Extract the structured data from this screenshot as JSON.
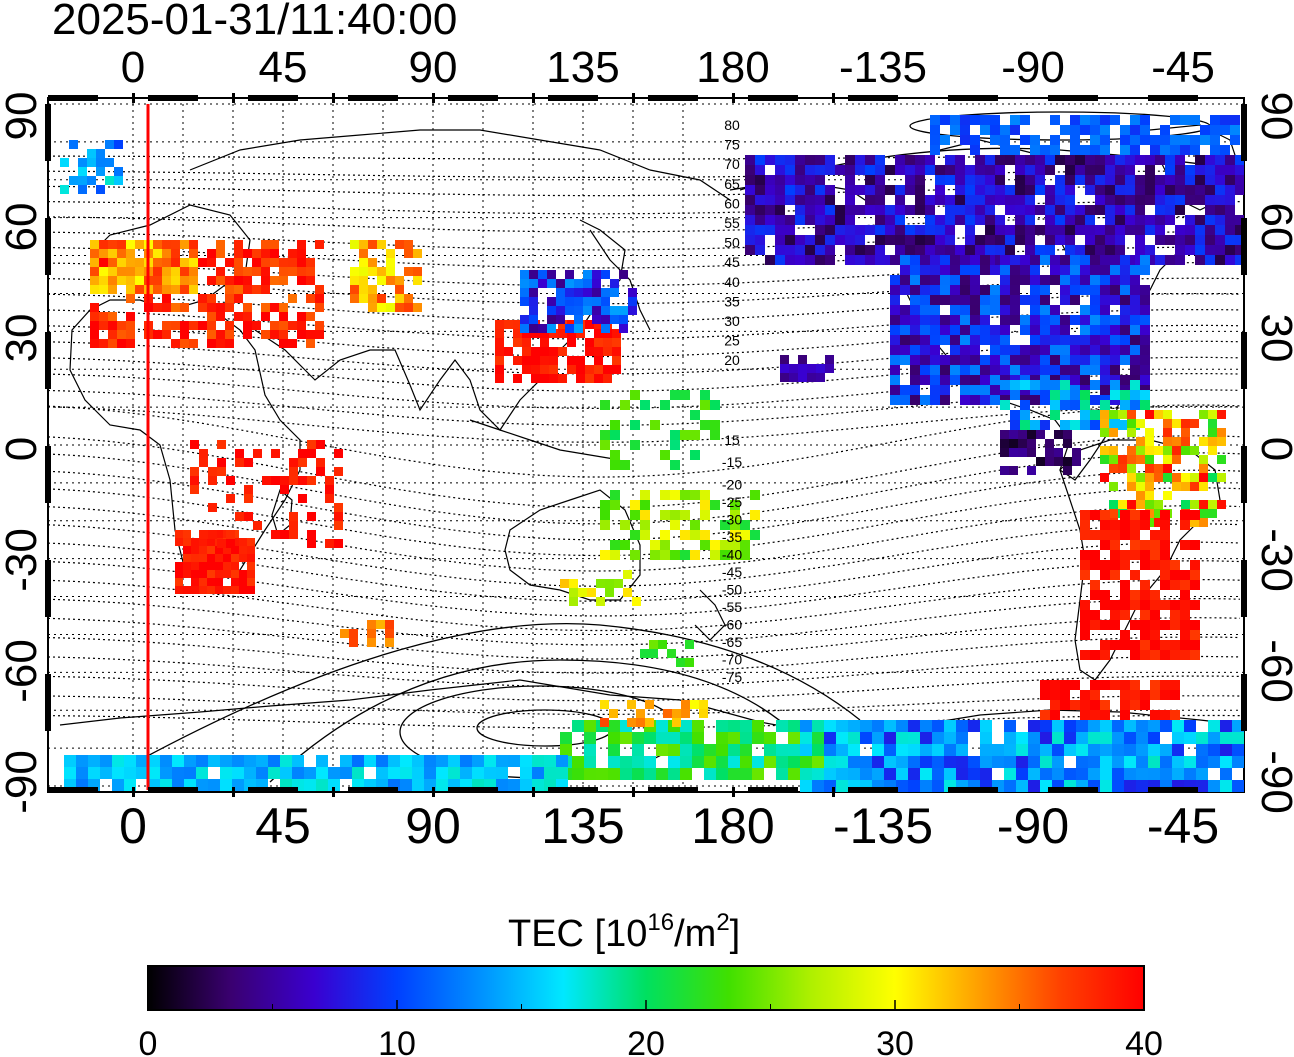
{
  "timestamp": "2025-01-31/11:40:00",
  "x_ticks": [
    "0",
    "45",
    "90",
    "135",
    "180",
    "-135",
    "-90",
    "-45"
  ],
  "y_ticks": [
    "90",
    "60",
    "30",
    "0",
    "-30",
    "-60",
    "-90"
  ],
  "contour_labels_north": [
    "80",
    "75",
    "70",
    "65",
    "60",
    "55",
    "50",
    "45",
    "40",
    "35",
    "30",
    "25",
    "20",
    "15"
  ],
  "contour_labels_south": [
    "-15",
    "-20",
    "-25",
    "-30",
    "-35",
    "-40",
    "-45",
    "-50",
    "-55",
    "-60",
    "-65",
    "-70",
    "-75"
  ],
  "colorbar": {
    "title_main": "TEC  [10",
    "title_sup1": "16",
    "title_mid": "/m",
    "title_sup2": "2",
    "title_end": "]",
    "ticks": [
      "0",
      "10",
      "20",
      "30",
      "40"
    ],
    "colors": [
      "#000000",
      "#3a0070",
      "#3a00d0",
      "#0040ff",
      "#0090ff",
      "#00e8ff",
      "#00e060",
      "#40e000",
      "#b0f000",
      "#ffff00",
      "#ffa000",
      "#ff4000",
      "#ff0000"
    ]
  },
  "terminator_color": "#ff0000"
}
